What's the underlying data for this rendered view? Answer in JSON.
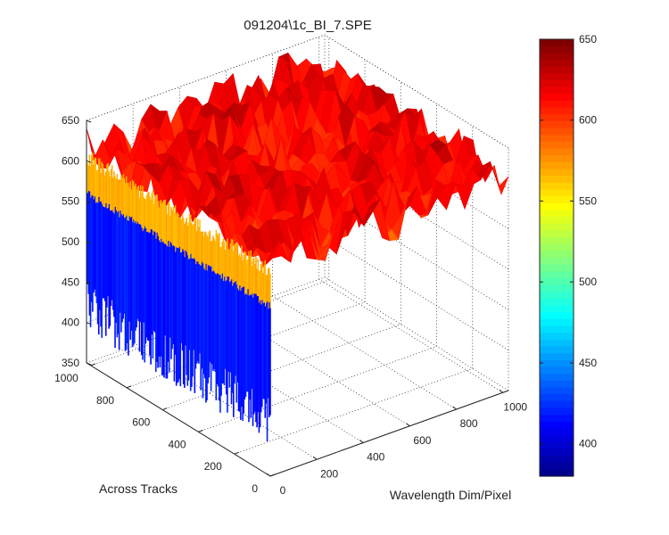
{
  "chart_data": {
    "type": "surface",
    "title": "091204\\1c_BI_7.SPE",
    "xlabel": "Wavelength Dim/Pixel",
    "ylabel": "Across Tracks",
    "zlabel": "",
    "x_ticks": [
      "0",
      "200",
      "400",
      "600",
      "800",
      "1000"
    ],
    "y_ticks": [
      "0",
      "200",
      "400",
      "600",
      "800",
      "1000"
    ],
    "z_ticks": [
      "350",
      "400",
      "450",
      "500",
      "550",
      "600",
      "650"
    ],
    "xlim": [
      0,
      1024
    ],
    "ylim": [
      0,
      1024
    ],
    "zlim": [
      350,
      650
    ],
    "colorbar": {
      "colormap": "jet",
      "range": [
        380,
        650
      ],
      "ticks": [
        "400",
        "450",
        "500",
        "550",
        "600",
        "650"
      ]
    },
    "surface_profile": {
      "description_values": "plateau mean intensity ~600 at all pixels except first wavelength column",
      "plateau_level": 600,
      "plateau_noise_range": [
        560,
        650
      ],
      "edge_column_x": 0,
      "edge_column_low_range": [
        390,
        560
      ],
      "edge_rise_level": 560
    },
    "grid": true
  }
}
